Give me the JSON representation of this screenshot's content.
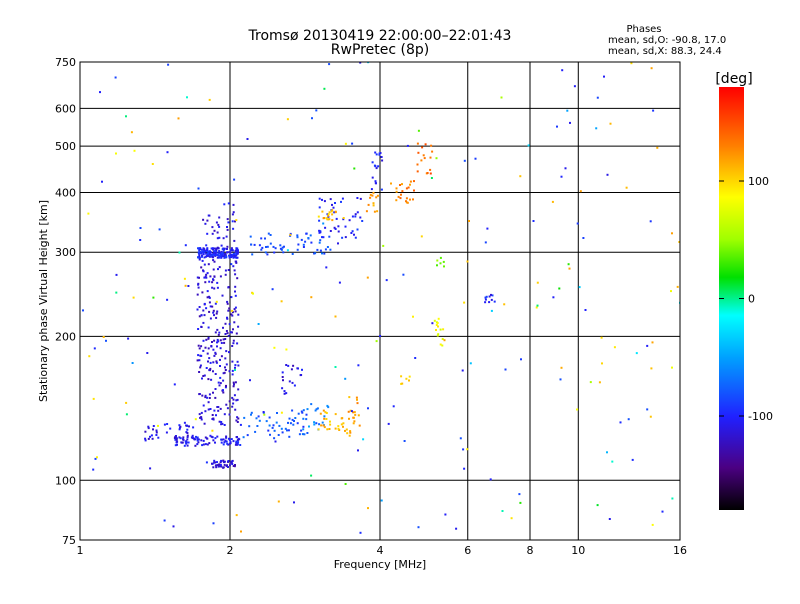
{
  "chart_data": {
    "type": "scatter",
    "title": "Tromsø 20130419 22:00:00–22:01:43",
    "subtitle": "RwPretec (8p)",
    "xlabel": "Frequency [MHz]",
    "ylabel": "Stationary phase Virtual Height [km]",
    "x_scale": "log2",
    "y_scale": "log",
    "xlim": [
      1,
      16
    ],
    "ylim": [
      75,
      750
    ],
    "x_ticks": [
      1,
      2,
      4,
      6,
      8,
      10,
      16
    ],
    "y_ticks": [
      75,
      100,
      200,
      300,
      400,
      500,
      600,
      750
    ],
    "grid": true,
    "phases_box": {
      "title": "Phases",
      "line_o": "mean, sd,O: -90.8, 17.0",
      "line_x": "mean, sd,X: 88.3, 24.4"
    },
    "colorbar": {
      "label": "[deg]",
      "range": [
        -180,
        180
      ],
      "ticks": [
        100,
        0,
        -100
      ],
      "colormap": "rainbow"
    },
    "clusters": [
      {
        "x": [
          1.72,
          2.08
        ],
        "y": [
          292,
          306
        ],
        "phase": -100,
        "count": 170
      },
      {
        "x": [
          1.75,
          2.05
        ],
        "y": [
          306,
          380
        ],
        "phase": -110,
        "count": 35
      },
      {
        "x": [
          2.2,
          3.2
        ],
        "y": [
          296,
          330
        ],
        "phase": -80,
        "count": 55
      },
      {
        "x": [
          3.0,
          3.7
        ],
        "y": [
          320,
          390
        ],
        "phase": -100,
        "count": 45
      },
      {
        "x": [
          3.0,
          3.4
        ],
        "y": [
          350,
          370
        ],
        "phase": 110,
        "count": 18
      },
      {
        "x": [
          3.7,
          4.0
        ],
        "y": [
          360,
          400
        ],
        "phase": 120,
        "count": 12
      },
      {
        "x": [
          3.85,
          4.05
        ],
        "y": [
          400,
          500
        ],
        "phase": -100,
        "count": 18
      },
      {
        "x": [
          4.2,
          4.7
        ],
        "y": [
          380,
          430
        ],
        "phase": 130,
        "count": 22
      },
      {
        "x": [
          4.7,
          5.1
        ],
        "y": [
          430,
          520
        ],
        "phase": 140,
        "count": 16
      },
      {
        "x": [
          1.72,
          2.08
        ],
        "y": [
          130,
          290
        ],
        "phase": -115,
        "count": 260
      },
      {
        "x": [
          1.55,
          2.1
        ],
        "y": [
          118,
          124
        ],
        "phase": -105,
        "count": 90
      },
      {
        "x": [
          1.83,
          2.05
        ],
        "y": [
          106,
          110
        ],
        "phase": -115,
        "count": 40
      },
      {
        "x": [
          1.35,
          1.7
        ],
        "y": [
          120,
          132
        ],
        "phase": -110,
        "count": 40
      },
      {
        "x": [
          2.1,
          3.0
        ],
        "y": [
          122,
          140
        ],
        "phase": -80,
        "count": 50
      },
      {
        "x": [
          2.5,
          2.8
        ],
        "y": [
          150,
          175
        ],
        "phase": -110,
        "count": 18
      },
      {
        "x": [
          2.8,
          3.2
        ],
        "y": [
          125,
          145
        ],
        "phase": -60,
        "count": 18
      },
      {
        "x": [
          3.0,
          3.5
        ],
        "y": [
          125,
          140
        ],
        "phase": 110,
        "count": 30
      },
      {
        "x": [
          3.45,
          3.65
        ],
        "y": [
          130,
          150
        ],
        "phase": 120,
        "count": 15
      },
      {
        "x": [
          5.15,
          5.4
        ],
        "y": [
          190,
          220
        ],
        "phase": 80,
        "count": 14
      },
      {
        "x": [
          5.2,
          5.4
        ],
        "y": [
          280,
          295
        ],
        "phase": 40,
        "count": 6
      },
      {
        "x": [
          6.5,
          6.8
        ],
        "y": [
          235,
          245
        ],
        "phase": -100,
        "count": 10
      },
      {
        "x": [
          4.4,
          4.6
        ],
        "y": [
          155,
          165
        ],
        "phase": 100,
        "count": 6
      },
      {
        "x": [
          1.0,
          16.0
        ],
        "y": [
          75,
          750
        ],
        "phase": 0,
        "count": 220
      }
    ]
  }
}
